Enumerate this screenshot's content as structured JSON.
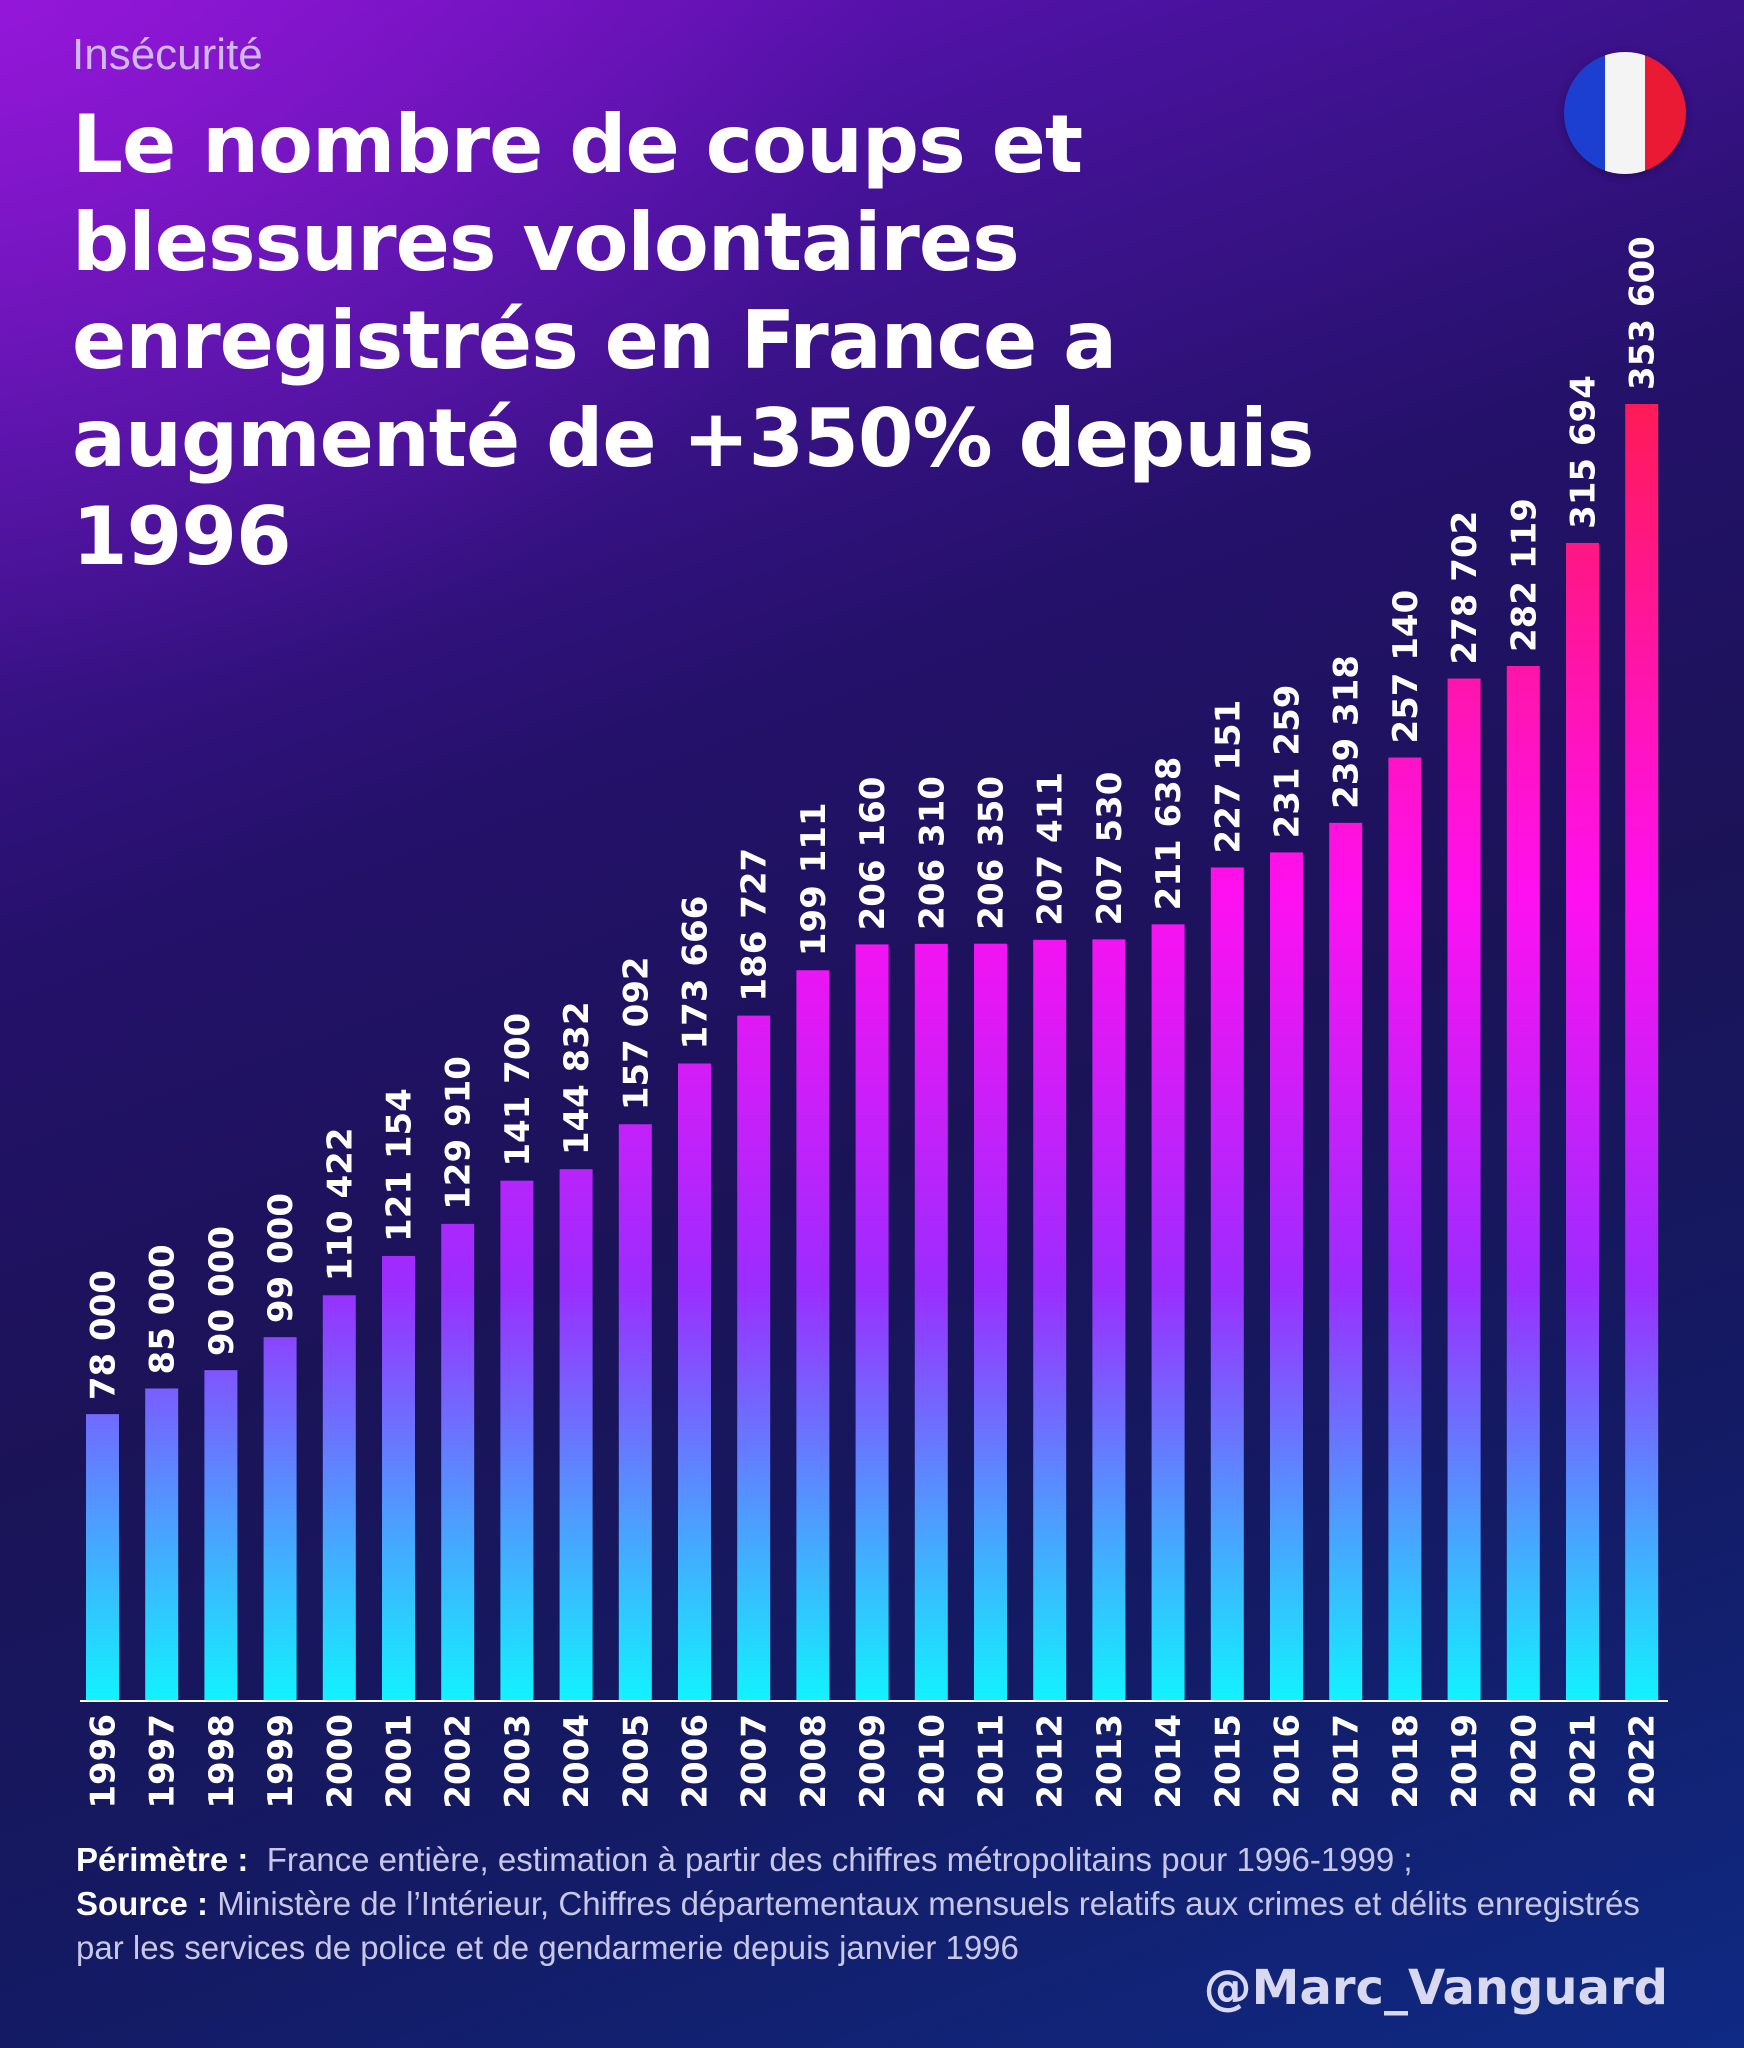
{
  "header": {
    "kicker": "Insécurité",
    "title": "Le nombre de coups et blessures volontaires enregistrés en France a augmenté de +350% depuis 1996"
  },
  "flag": {
    "icon": "france-flag-icon",
    "colors": [
      "#1d3fd1",
      "#f4f4f4",
      "#ea1a34"
    ]
  },
  "chart_data": {
    "type": "bar",
    "title": "",
    "xlabel": "",
    "ylabel": "",
    "categories": [
      "1996",
      "1997",
      "1998",
      "1999",
      "2000",
      "2001",
      "2002",
      "2003",
      "2004",
      "2005",
      "2006",
      "2007",
      "2008",
      "2009",
      "2010",
      "2011",
      "2012",
      "2013",
      "2014",
      "2015",
      "2016",
      "2017",
      "2018",
      "2019",
      "2020",
      "2021",
      "2022"
    ],
    "values": [
      78000,
      85000,
      90000,
      99000,
      110422,
      121154,
      129910,
      141700,
      144832,
      157092,
      173666,
      186727,
      199111,
      206160,
      206310,
      206350,
      207411,
      207530,
      211638,
      227151,
      231259,
      239318,
      257140,
      278702,
      282119,
      315694,
      353600
    ],
    "value_labels": [
      "78 000",
      "85 000",
      "90 000",
      "99 000",
      "110 422",
      "121 154",
      "129 910",
      "141 700",
      "144 832",
      "157 092",
      "173 666",
      "186 727",
      "199 111",
      "206 160",
      "206 310",
      "206 350",
      "207 411",
      "207 530",
      "211 638",
      "227 151",
      "231 259",
      "239 318",
      "257 140",
      "278 702",
      "282 119",
      "315 694",
      "353 600"
    ],
    "ylim": [
      0,
      353600
    ],
    "grid": false,
    "legend": "none",
    "bar_gradient_colors": [
      "#12f2ff",
      "#9c2cff",
      "#ff10f0",
      "#ff1a55"
    ]
  },
  "footer": {
    "perimetre_label": "Périmètre :",
    "perimetre_text": "France entière, estimation à partir des chiffres métropolitains pour 1996-1999 ;",
    "source_label": "Source :",
    "source_text": "Ministère de l’Intérieur, Chiffres départementaux mensuels relatifs aux crimes et délits enregistrés par les services de police et de gendarmerie depuis janvier 1996",
    "handle": "@Marc_Vanguard"
  }
}
